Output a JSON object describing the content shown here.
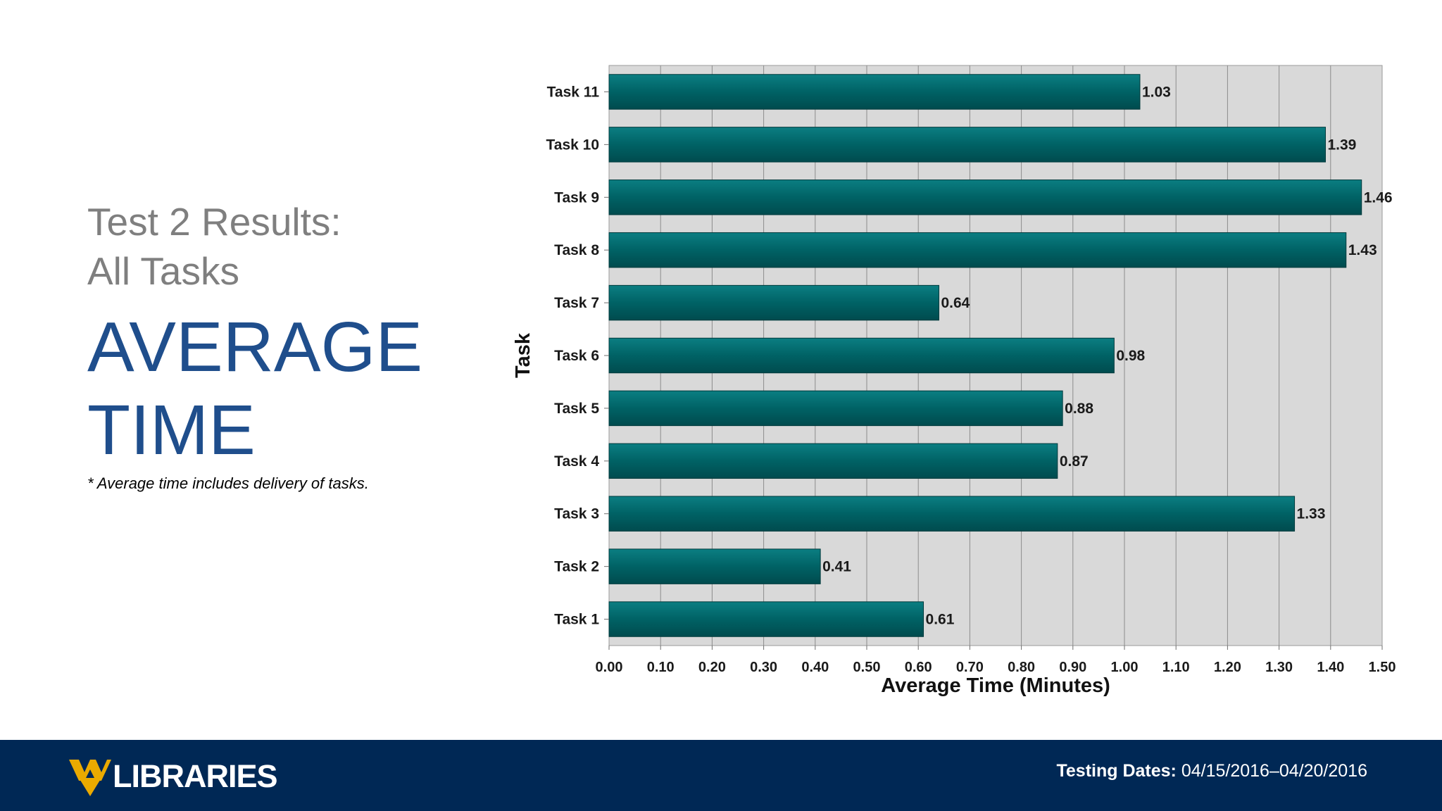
{
  "slide": {
    "subtitle_line1": "Test 2 Results:",
    "subtitle_line2": "All Tasks",
    "title_line1": "AVERAGE",
    "title_line2": "TIME",
    "footnote": "* Average time includes delivery of tasks."
  },
  "footer": {
    "logo_text": "LIBRARIES",
    "testing_label": "Testing Dates:",
    "testing_value": "04/15/2016–04/20/2016",
    "background_color": "#002855",
    "logo_color": "#EAAA00"
  },
  "chart_data": {
    "type": "bar",
    "orientation": "horizontal",
    "categories": [
      "Task 11",
      "Task 10",
      "Task 9",
      "Task 8",
      "Task 7",
      "Task 6",
      "Task 5",
      "Task 4",
      "Task 3",
      "Task 2",
      "Task 1"
    ],
    "values": [
      1.03,
      1.39,
      1.46,
      1.43,
      0.64,
      0.98,
      0.88,
      0.87,
      1.33,
      0.41,
      0.61
    ],
    "value_labels": [
      "1.03",
      "1.39",
      "1.46",
      "1.43",
      "0.64",
      "0.98",
      "0.88",
      "0.87",
      "1.33",
      "0.41",
      "0.61"
    ],
    "xlabel": "Average Time (Minutes)",
    "ylabel": "Task",
    "xlim": [
      0,
      1.5
    ],
    "xticks": [
      "0.00",
      "0.10",
      "0.20",
      "0.30",
      "0.40",
      "0.50",
      "0.60",
      "0.70",
      "0.80",
      "0.90",
      "1.00",
      "1.10",
      "1.20",
      "1.30",
      "1.40",
      "1.50"
    ],
    "grid": true,
    "bar_color": "#006265",
    "plot_background": "#d9d9d9"
  }
}
